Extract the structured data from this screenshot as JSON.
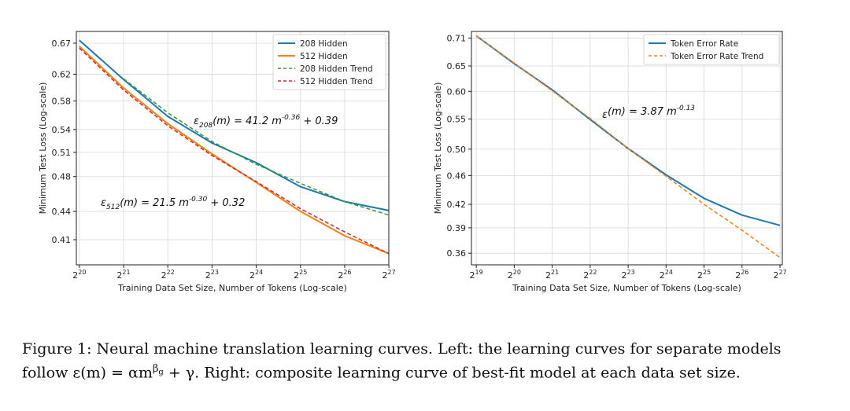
{
  "chart_data": [
    {
      "type": "line",
      "xlabel": "Training Data Set Size, Number of Tokens (Log-scale)",
      "ylabel": "Minimum Test Loss (Log-scale)",
      "x_scale": "log2",
      "y_scale": "log",
      "xlim": [
        1000000.0,
        134000000.0
      ],
      "ylim": [
        0.385,
        0.69
      ],
      "x_ticks": [
        {
          "exp": "20"
        },
        {
          "exp": "21"
        },
        {
          "exp": "22"
        },
        {
          "exp": "23"
        },
        {
          "exp": "24"
        },
        {
          "exp": "25"
        },
        {
          "exp": "26"
        },
        {
          "exp": "27"
        }
      ],
      "y_ticks": [
        "0.67",
        "0.62",
        "0.58",
        "0.54",
        "0.51",
        "0.48",
        "0.44",
        "0.41"
      ],
      "grid": true,
      "legend_position": "top-right",
      "series": [
        {
          "name": "208 Hidden",
          "color": "#1f77b4",
          "style": "solid",
          "x": [
            1048576,
            2097152,
            4194304,
            8388608,
            16777216,
            33554432,
            67108864,
            134217728
          ],
          "y": [
            0.675,
            0.612,
            0.558,
            0.522,
            0.497,
            0.468,
            0.451,
            0.441
          ]
        },
        {
          "name": "512 Hidden",
          "color": "#ff7f0e",
          "style": "solid",
          "x": [
            1048576,
            2097152,
            4194304,
            8388608,
            16777216,
            33554432,
            67108864,
            134217728
          ],
          "y": [
            0.665,
            0.599,
            0.548,
            0.508,
            0.473,
            0.44,
            0.414,
            0.396
          ]
        },
        {
          "name": "208 Hidden Trend",
          "color": "#2ca02c",
          "style": "dashed",
          "x": [
            2097152,
            4194304,
            8388608,
            16777216,
            33554432,
            67108864,
            134217728
          ],
          "y": [
            0.613,
            0.563,
            0.524,
            0.495,
            0.472,
            0.451,
            0.436
          ]
        },
        {
          "name": "512 Hidden Trend",
          "color": "#d62728",
          "style": "dashed",
          "x": [
            1048576,
            2097152,
            4194304,
            8388608,
            16777216,
            33554432,
            67108864,
            134217728
          ],
          "y": [
            0.662,
            0.596,
            0.545,
            0.506,
            0.474,
            0.443,
            0.418,
            0.396
          ]
        }
      ],
      "annotations": [
        {
          "lead": "ε",
          "sub": "208",
          "mid": "(m) = 41.2 m",
          "sup": "-0.36",
          "tail": " + 0.39"
        },
        {
          "lead": "ε",
          "sub": "512",
          "mid": "(m) = 21.5 m",
          "sup": "-0.30",
          "tail": " + 0.32"
        }
      ]
    },
    {
      "type": "line",
      "xlabel": "Training Data Set Size, Number of Tokens (Log-scale)",
      "ylabel": "Minimum Test Loss (Log-scale)",
      "x_scale": "log2",
      "y_scale": "log",
      "xlim": [
        480000,
        140000000.0
      ],
      "ylim": [
        0.347,
        0.725
      ],
      "x_ticks": [
        {
          "exp": "19"
        },
        {
          "exp": "20"
        },
        {
          "exp": "21"
        },
        {
          "exp": "22"
        },
        {
          "exp": "23"
        },
        {
          "exp": "24"
        },
        {
          "exp": "25"
        },
        {
          "exp": "26"
        },
        {
          "exp": "27"
        }
      ],
      "y_ticks": [
        "0.71",
        "0.65",
        "0.60",
        "0.55",
        "0.50",
        "0.46",
        "0.42",
        "0.39",
        "0.36"
      ],
      "grid": true,
      "legend_position": "top-right",
      "series": [
        {
          "name": "Token Error Rate",
          "color": "#1f77b4",
          "style": "solid",
          "x": [
            524288,
            1048576,
            2097152,
            4194304,
            8388608,
            16777216,
            33554432,
            67108864,
            134217728
          ],
          "y": [
            0.715,
            0.655,
            0.603,
            0.549,
            0.501,
            0.461,
            0.428,
            0.406,
            0.393
          ]
        },
        {
          "name": "Token Error Rate Trend",
          "color": "#ff7f0e",
          "style": "dashed",
          "x": [
            524288,
            1048576,
            2097152,
            4194304,
            8388608,
            16777216,
            33554432,
            67108864,
            134217728
          ],
          "y": [
            0.715,
            0.656,
            0.601,
            0.551,
            0.501,
            0.459,
            0.42,
            0.387,
            0.355
          ]
        }
      ],
      "annotations": [
        {
          "lead": "ε",
          "sub": "",
          "mid": "(m) = 3.87 m",
          "sup": "-0.13",
          "tail": ""
        }
      ]
    }
  ],
  "caption": {
    "line1": "Figure 1: Neural machine translation learning curves. Left: the learning curves for separate models",
    "line2_a": "follow ε(m) = αm",
    "line2_sup": "β",
    "line2_subsup": "g",
    "line2_b": " + γ. Right: composite learning curve of best-fit model at each data set size."
  }
}
